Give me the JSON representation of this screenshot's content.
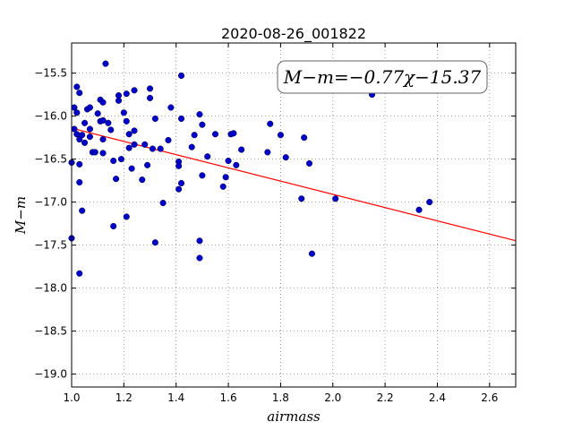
{
  "chart_data": {
    "type": "scatter",
    "title": "2020-08-26_001822",
    "xlabel": "airmass",
    "ylabel": "M−m",
    "xlim": [
      1.0,
      2.7
    ],
    "ylim": [
      -19.15,
      -15.15
    ],
    "y_inverted": true,
    "grid": true,
    "x_ticks": [
      1.0,
      1.2,
      1.4,
      1.6,
      1.8,
      2.0,
      2.2,
      2.4,
      2.6
    ],
    "x_tick_labels": [
      "1.0",
      "1.2",
      "1.4",
      "1.6",
      "1.8",
      "2.0",
      "2.2",
      "2.4",
      "2.6"
    ],
    "y_ticks": [
      -15.5,
      -16.0,
      -16.5,
      -17.0,
      -17.5,
      -18.0,
      -18.5,
      -19.0
    ],
    "y_tick_labels": [
      "−15.5",
      "−16.0",
      "−16.5",
      "−17.0",
      "−17.5",
      "−18.0",
      "−18.5",
      "−19.0"
    ],
    "annotation": {
      "text": "M−m=−0.77χ−15.37",
      "position": "top-right"
    },
    "fit_line": {
      "slope": -0.77,
      "intercept": -15.37,
      "color": "#ff0000"
    },
    "points_color": "#0000cc",
    "points": [
      [
        1.0,
        -16.54
      ],
      [
        1.0,
        -17.42
      ],
      [
        1.01,
        -16.15
      ],
      [
        1.01,
        -15.9
      ],
      [
        1.02,
        -15.66
      ],
      [
        1.02,
        -15.96
      ],
      [
        1.02,
        -16.21
      ],
      [
        1.03,
        -15.73
      ],
      [
        1.03,
        -16.27
      ],
      [
        1.03,
        -16.56
      ],
      [
        1.03,
        -16.77
      ],
      [
        1.03,
        -17.83
      ],
      [
        1.04,
        -16.22
      ],
      [
        1.04,
        -17.1
      ],
      [
        1.05,
        -16.08
      ],
      [
        1.05,
        -16.31
      ],
      [
        1.06,
        -15.92
      ],
      [
        1.07,
        -15.9
      ],
      [
        1.07,
        -16.15
      ],
      [
        1.07,
        -16.24
      ],
      [
        1.08,
        -16.42
      ],
      [
        1.09,
        -16.42
      ],
      [
        1.1,
        -15.97
      ],
      [
        1.11,
        -15.81
      ],
      [
        1.11,
        -16.06
      ],
      [
        1.12,
        -16.05
      ],
      [
        1.12,
        -16.27
      ],
      [
        1.12,
        -16.43
      ],
      [
        1.12,
        -15.84
      ],
      [
        1.13,
        -15.39
      ],
      [
        1.14,
        -16.08
      ],
      [
        1.15,
        -16.16
      ],
      [
        1.16,
        -16.52
      ],
      [
        1.16,
        -17.28
      ],
      [
        1.17,
        -16.73
      ],
      [
        1.18,
        -15.82
      ],
      [
        1.18,
        -15.76
      ],
      [
        1.19,
        -16.5
      ],
      [
        1.2,
        -15.96
      ],
      [
        1.21,
        -16.06
      ],
      [
        1.21,
        -15.74
      ],
      [
        1.21,
        -17.17
      ],
      [
        1.22,
        -16.21
      ],
      [
        1.22,
        -16.37
      ],
      [
        1.23,
        -16.61
      ],
      [
        1.24,
        -15.7
      ],
      [
        1.24,
        -16.17
      ],
      [
        1.24,
        -16.33
      ],
      [
        1.27,
        -16.74
      ],
      [
        1.28,
        -16.33
      ],
      [
        1.29,
        -16.57
      ],
      [
        1.3,
        -15.79
      ],
      [
        1.3,
        -15.68
      ],
      [
        1.31,
        -16.38
      ],
      [
        1.32,
        -16.03
      ],
      [
        1.32,
        -17.47
      ],
      [
        1.34,
        -16.38
      ],
      [
        1.35,
        -17.01
      ],
      [
        1.37,
        -16.28
      ],
      [
        1.38,
        -15.9
      ],
      [
        1.41,
        -16.85
      ],
      [
        1.41,
        -16.53
      ],
      [
        1.41,
        -16.58
      ],
      [
        1.42,
        -15.53
      ],
      [
        1.42,
        -16.03
      ],
      [
        1.42,
        -16.78
      ],
      [
        1.46,
        -16.36
      ],
      [
        1.47,
        -16.22
      ],
      [
        1.49,
        -15.98
      ],
      [
        1.49,
        -17.45
      ],
      [
        1.49,
        -17.65
      ],
      [
        1.5,
        -16.1
      ],
      [
        1.5,
        -16.69
      ],
      [
        1.52,
        -16.47
      ],
      [
        1.55,
        -16.21
      ],
      [
        1.58,
        -16.82
      ],
      [
        1.59,
        -16.71
      ],
      [
        1.6,
        -16.52
      ],
      [
        1.61,
        -16.21
      ],
      [
        1.62,
        -16.2
      ],
      [
        1.63,
        -16.57
      ],
      [
        1.65,
        -16.39
      ],
      [
        1.75,
        -16.42
      ],
      [
        1.76,
        -16.09
      ],
      [
        1.8,
        -16.22
      ],
      [
        1.82,
        -16.48
      ],
      [
        1.88,
        -16.96
      ],
      [
        1.89,
        -16.25
      ],
      [
        1.91,
        -16.55
      ],
      [
        1.92,
        -17.6
      ],
      [
        2.01,
        -16.96
      ],
      [
        2.15,
        -15.75
      ],
      [
        2.33,
        -17.09
      ],
      [
        2.37,
        -17.0
      ]
    ]
  }
}
